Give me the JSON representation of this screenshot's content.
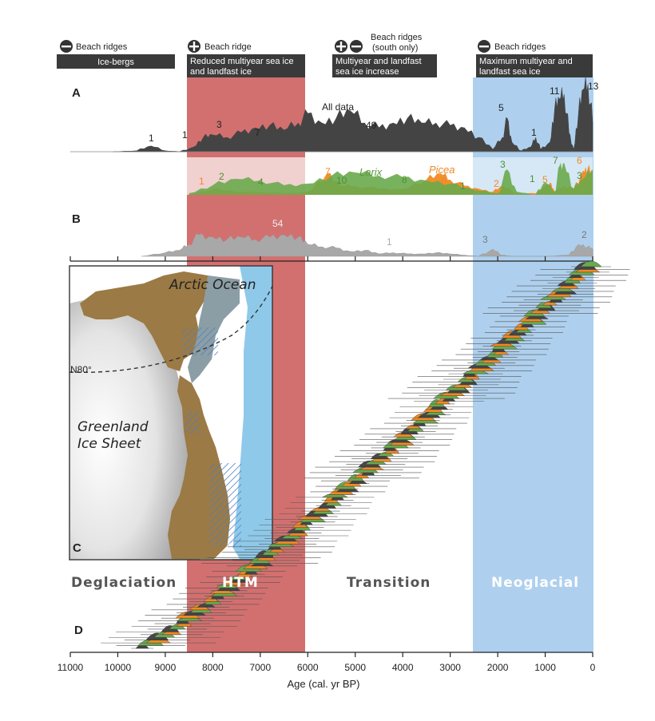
{
  "headers": [
    {
      "id": "icebergs",
      "symbol": "minus",
      "top_label": "Beach ridges",
      "box_label": "Ice-bergs"
    },
    {
      "id": "reduced",
      "symbol": "plus",
      "top_label": "Beach ridge",
      "box_label_1": "Reduced multiyear sea ice",
      "box_label_2": "and landfast ice"
    },
    {
      "id": "increase",
      "symbol": "plusminus",
      "top_label_1": "Beach ridges",
      "top_label_2": "(south only)",
      "box_label_1": "Multiyear and landfast",
      "box_label_2": "sea ice increase"
    },
    {
      "id": "maximum",
      "symbol": "minus",
      "top_label": "Beach ridges",
      "box_label_1": "Maximum multiyear and",
      "box_label_2": "landfast sea ice"
    }
  ],
  "panels": {
    "a": "A",
    "b": "B",
    "c": "C",
    "d": "D"
  },
  "annotations": {
    "all_data": "All data",
    "larix": "Larix",
    "picea": "Picea",
    "a_counts": [
      "1",
      "1",
      "3",
      "7",
      "49",
      "5",
      "1",
      "11",
      "13"
    ],
    "larix_counts": [
      "2",
      "4",
      "10",
      "8",
      "1",
      "3",
      "1",
      "7",
      "3"
    ],
    "picea_counts": [
      "1",
      "7",
      "6",
      "2",
      "5",
      "6"
    ],
    "b_counts": [
      "54",
      "1",
      "3",
      "2"
    ]
  },
  "periods": {
    "deglaciation": "Deglaciation",
    "htm": "HTM",
    "transition": "Transition",
    "neoglacial": "Neoglacial"
  },
  "map": {
    "ocean": "Arctic Ocean",
    "ice1": "Greenland",
    "ice2": "Ice Sheet",
    "lat": "N80°"
  },
  "colors": {
    "htm": "#d2706f",
    "neoglacial": "#aed0ee",
    "all_data": "#444444",
    "larix": "#6aaa4c",
    "picea": "#ef8a24",
    "other": "#a8a8a8",
    "land": "#9b7a45",
    "ocean": "#8fc9ea"
  },
  "chart_data": {
    "type": "area",
    "xlabel": "Age (cal. yr BP)",
    "xlim": [
      11000,
      0
    ],
    "xticks": [
      11000,
      10000,
      9000,
      8000,
      7000,
      6000,
      5000,
      4000,
      3000,
      2000,
      1000,
      0
    ],
    "shaded_periods": [
      {
        "name": "HTM",
        "start": 8500,
        "end": 6000
      },
      {
        "name": "Neoglacial",
        "start": 2400,
        "end": 0
      }
    ],
    "series_a_all_data": {
      "x": [
        10100,
        9600,
        9300,
        9000,
        8700,
        8400,
        8200,
        8000,
        7700,
        7400,
        7100,
        6800,
        6500,
        6200,
        6000,
        5700,
        5400,
        5100,
        4800,
        4500,
        4200,
        3900,
        3600,
        3300,
        3000,
        2700,
        2400,
        2100,
        1900,
        1800,
        1700,
        1500,
        1300,
        1200,
        1100,
        900,
        800,
        700,
        600,
        500,
        400,
        300,
        200,
        100,
        0
      ],
      "y": [
        0.0,
        0.02,
        0.12,
        0.02,
        0.0,
        0.1,
        0.3,
        0.35,
        0.3,
        0.4,
        0.5,
        0.55,
        0.45,
        0.6,
        0.8,
        0.6,
        0.7,
        0.85,
        0.6,
        0.5,
        0.6,
        0.7,
        0.6,
        0.6,
        0.55,
        0.5,
        0.3,
        0.05,
        0.3,
        0.7,
        0.2,
        0.02,
        0.1,
        0.3,
        0.05,
        0.2,
        0.9,
        1.1,
        1.2,
        0.4,
        0.05,
        0.8,
        1.3,
        1.4,
        0.6
      ]
    },
    "series_larix": {
      "x": [
        8500,
        8000,
        7500,
        7000,
        6500,
        6000,
        5500,
        5000,
        4500,
        4000,
        3500,
        3000,
        2500,
        2000,
        1800,
        1600,
        1200,
        1000,
        800,
        700,
        600,
        400,
        200,
        0
      ],
      "y": [
        0.05,
        0.3,
        0.5,
        0.45,
        0.3,
        0.35,
        0.6,
        0.7,
        0.6,
        0.55,
        0.45,
        0.35,
        0.15,
        0.05,
        0.8,
        0.1,
        0.0,
        0.4,
        0.1,
        0.9,
        1.0,
        0.2,
        0.5,
        0.8
      ]
    },
    "series_picea": {
      "x": [
        8500,
        8000,
        7500,
        7000,
        6500,
        6000,
        5600,
        5300,
        5000,
        4500,
        4000,
        3500,
        3200,
        3000,
        2700,
        2400,
        2100,
        1900,
        1600,
        1200,
        1000,
        900,
        800,
        600,
        400,
        200,
        100,
        0
      ],
      "y": [
        0.0,
        0.2,
        0.1,
        0.1,
        0.05,
        0.1,
        0.7,
        0.3,
        0.3,
        0.2,
        0.2,
        0.5,
        0.7,
        0.5,
        0.3,
        0.2,
        0.1,
        0.3,
        0.05,
        0.05,
        0.3,
        0.4,
        0.1,
        0.3,
        0.2,
        0.8,
        0.9,
        0.7
      ]
    },
    "series_b_other": {
      "x": [
        9500,
        9000,
        8700,
        8500,
        8300,
        8000,
        7700,
        7400,
        7100,
        6800,
        6500,
        6200,
        6000,
        5700,
        5400,
        5100,
        4800,
        4500,
        4200,
        3900,
        3600,
        3300,
        3000,
        2700,
        2400,
        2100,
        1900,
        1700,
        1000,
        500,
        300,
        100,
        0
      ],
      "y": [
        0.0,
        0.15,
        0.25,
        0.5,
        0.9,
        0.8,
        0.7,
        0.8,
        0.7,
        0.8,
        0.9,
        0.8,
        0.5,
        0.4,
        0.35,
        0.2,
        0.25,
        0.1,
        0.15,
        0.1,
        0.1,
        0.15,
        0.1,
        0.05,
        0.0,
        0.3,
        0.05,
        0.0,
        0.0,
        0.05,
        0.5,
        0.4,
        0.3
      ]
    },
    "panel_d_dated_samples_count": 140
  }
}
